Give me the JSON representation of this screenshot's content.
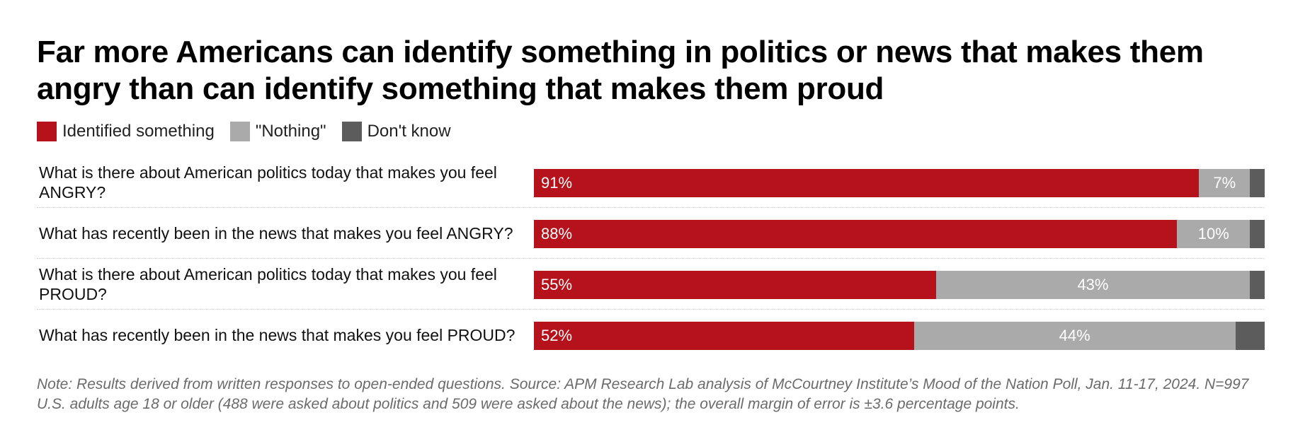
{
  "title": "Far more Americans can identify something in politics or news that makes them angry than can identify something that makes them proud",
  "legend": [
    {
      "label": "Identified something",
      "color": "#b5121b"
    },
    {
      "label": "\"Nothing\"",
      "color": "#aaaaaa"
    },
    {
      "label": "Don't know",
      "color": "#5c5c5c"
    }
  ],
  "chart_data": {
    "type": "bar",
    "orientation": "horizontal",
    "stacked": true,
    "categories": [
      "What is there about American politics today that makes you feel ANGRY?",
      "What has recently been in the news that makes you feel ANGRY?",
      "What is there about American politics today that makes you feel PROUD?",
      "What has recently been in the news that makes you feel PROUD?"
    ],
    "series": [
      {
        "name": "Identified something",
        "color": "#b5121b",
        "values": [
          91,
          88,
          55,
          52
        ],
        "labels": [
          "91%",
          "88%",
          "55%",
          "52%"
        ]
      },
      {
        "name": "\"Nothing\"",
        "color": "#aaaaaa",
        "values": [
          7,
          10,
          43,
          44
        ],
        "labels": [
          "7%",
          "10%",
          "43%",
          "44%"
        ]
      },
      {
        "name": "Don't know",
        "color": "#5c5c5c",
        "values": [
          2,
          2,
          2,
          4
        ],
        "labels": [
          "",
          "",
          "",
          ""
        ]
      }
    ],
    "xlim": [
      0,
      100
    ]
  },
  "note": "Note: Results derived from written responses to open-ended questions. Source: APM Research Lab analysis of McCourtney Institute’s Mood of the Nation Poll, Jan. 11-17, 2024. N=997 U.S. adults age 18 or older (488 were asked about politics and 509 were asked about the news); the overall margin of error is ±3.6 percentage points."
}
